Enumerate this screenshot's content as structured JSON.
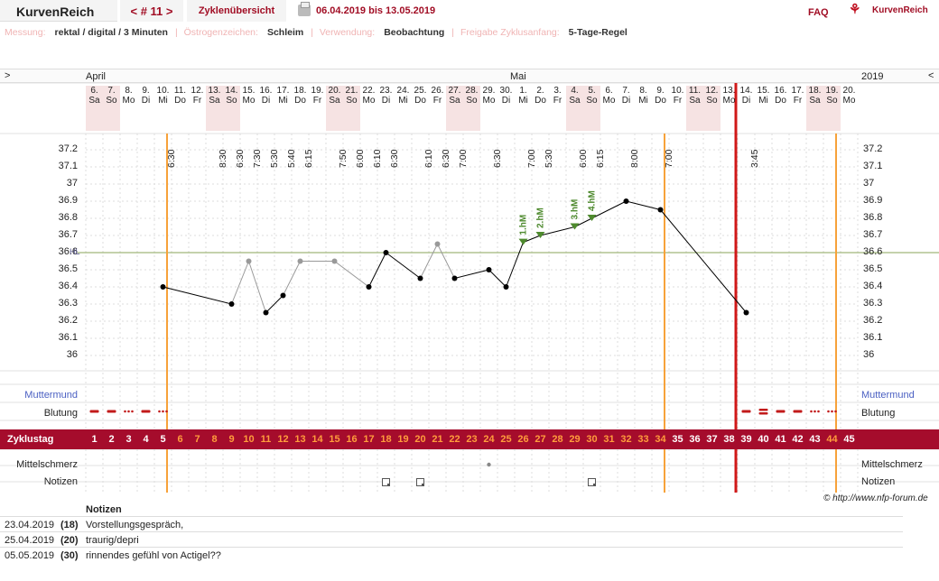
{
  "header": {
    "brand": "KurvenReich",
    "cycle_nav": "< # 11 >",
    "overview": "Zyklenübersicht",
    "date_range": "06.04.2019 bis 13.05.2019",
    "faq": "FAQ",
    "logo_text": "KurvenReich",
    "icon": "print-icon"
  },
  "params": [
    {
      "label": "Messung:",
      "value": "rektal / digital / 3 Minuten"
    },
    {
      "label": "Östrogenzeichen:",
      "value": "Schleim"
    },
    {
      "label": "Verwendung:",
      "value": "Beobachtung"
    },
    {
      "label": "Freigabe Zyklusanfang:",
      "value": "5-Tage-Regel"
    }
  ],
  "nav": {
    "left": ">",
    "right": "<"
  },
  "months": [
    {
      "name": "April",
      "day_index": 0
    },
    {
      "name": "Mai",
      "day_index": 25
    }
  ],
  "year": "2019",
  "days": [
    {
      "d": "6.",
      "w": "Sa",
      "t": "",
      "we": true
    },
    {
      "d": "7.",
      "w": "So",
      "t": "",
      "we": true
    },
    {
      "d": "8.",
      "w": "Mo",
      "t": ""
    },
    {
      "d": "9.",
      "w": "Di",
      "t": ""
    },
    {
      "d": "10.",
      "w": "Mi",
      "t": "6:30"
    },
    {
      "d": "11.",
      "w": "Do",
      "t": ""
    },
    {
      "d": "12.",
      "w": "Fr",
      "t": ""
    },
    {
      "d": "13.",
      "w": "Sa",
      "t": "8:30",
      "we": true
    },
    {
      "d": "14.",
      "w": "So",
      "t": "6:30",
      "we": true
    },
    {
      "d": "15.",
      "w": "Mo",
      "t": "7:30"
    },
    {
      "d": "16.",
      "w": "Di",
      "t": "5:30"
    },
    {
      "d": "17.",
      "w": "Mi",
      "t": "5:40"
    },
    {
      "d": "18.",
      "w": "Do",
      "t": "6:15"
    },
    {
      "d": "19.",
      "w": "Fr",
      "t": ""
    },
    {
      "d": "20.",
      "w": "Sa",
      "t": "7:50",
      "we": true
    },
    {
      "d": "21.",
      "w": "So",
      "t": "6:00",
      "we": true
    },
    {
      "d": "22.",
      "w": "Mo",
      "t": "6:10"
    },
    {
      "d": "23.",
      "w": "Di",
      "t": "6:30"
    },
    {
      "d": "24.",
      "w": "Mi",
      "t": ""
    },
    {
      "d": "25.",
      "w": "Do",
      "t": "6:10"
    },
    {
      "d": "26.",
      "w": "Fr",
      "t": "6:30"
    },
    {
      "d": "27.",
      "w": "Sa",
      "t": "7:00",
      "we": true
    },
    {
      "d": "28.",
      "w": "So",
      "t": "",
      "we": true
    },
    {
      "d": "29.",
      "w": "Mo",
      "t": "6:30"
    },
    {
      "d": "30.",
      "w": "Di",
      "t": ""
    },
    {
      "d": "1.",
      "w": "Mi",
      "t": "7:00"
    },
    {
      "d": "2.",
      "w": "Do",
      "t": "5:30"
    },
    {
      "d": "3.",
      "w": "Fr",
      "t": ""
    },
    {
      "d": "4.",
      "w": "Sa",
      "t": "6:00",
      "we": true
    },
    {
      "d": "5.",
      "w": "So",
      "t": "6:15",
      "we": true
    },
    {
      "d": "6.",
      "w": "Mo",
      "t": ""
    },
    {
      "d": "7.",
      "w": "Di",
      "t": "8:00"
    },
    {
      "d": "8.",
      "w": "Mi",
      "t": ""
    },
    {
      "d": "9.",
      "w": "Do",
      "t": "7:00"
    },
    {
      "d": "10.",
      "w": "Fr",
      "t": ""
    },
    {
      "d": "11.",
      "w": "Sa",
      "t": "",
      "we": true
    },
    {
      "d": "12.",
      "w": "So",
      "t": "",
      "we": true
    },
    {
      "d": "13.",
      "w": "Mo",
      "t": ""
    },
    {
      "d": "14.",
      "w": "Di",
      "t": "3:45"
    },
    {
      "d": "15.",
      "w": "Mi",
      "t": ""
    },
    {
      "d": "16.",
      "w": "Do",
      "t": ""
    },
    {
      "d": "17.",
      "w": "Fr",
      "t": ""
    },
    {
      "d": "18.",
      "w": "Sa",
      "t": "",
      "we": true
    },
    {
      "d": "19.",
      "w": "So",
      "t": "",
      "we": true
    },
    {
      "d": "20.",
      "w": "Mo",
      "t": ""
    }
  ],
  "chart_data": {
    "type": "line",
    "title": "",
    "xlabel": "",
    "ylabel": "",
    "ylim": [
      36.0,
      37.2
    ],
    "yticks": [
      "37.2",
      "37.1",
      "37",
      "36.9",
      "36.8",
      "36.7",
      "36.6",
      "36.5",
      "36.4",
      "36.3",
      "36.2",
      "36.1",
      "36"
    ],
    "hl_label": "HL",
    "hl_value": 36.6,
    "points": [
      {
        "day": 5,
        "v": 36.4
      },
      {
        "day": 9,
        "v": 36.3
      },
      {
        "day": 10,
        "v": 36.55,
        "excluded": true
      },
      {
        "day": 11,
        "v": 36.25
      },
      {
        "day": 12,
        "v": 36.35
      },
      {
        "day": 13,
        "v": 36.55,
        "excluded": true
      },
      {
        "day": 15,
        "v": 36.55,
        "excluded": true
      },
      {
        "day": 17,
        "v": 36.4
      },
      {
        "day": 18,
        "v": 36.6
      },
      {
        "day": 20,
        "v": 36.45
      },
      {
        "day": 21,
        "v": 36.65,
        "excluded": true
      },
      {
        "day": 22,
        "v": 36.45
      },
      {
        "day": 24,
        "v": 36.5
      },
      {
        "day": 25,
        "v": 36.4
      },
      {
        "day": 26,
        "v": 36.66,
        "marker": "1.hM"
      },
      {
        "day": 27,
        "v": 36.7,
        "marker": "2.hM"
      },
      {
        "day": 29,
        "v": 36.75,
        "marker": "3.hM"
      },
      {
        "day": 30,
        "v": 36.8,
        "marker": "4.hM"
      },
      {
        "day": 32,
        "v": 36.9
      },
      {
        "day": 34,
        "v": 36.85
      },
      {
        "day": 39,
        "v": 36.25
      }
    ],
    "cycle_days": [
      "1",
      "2",
      "3",
      "4",
      "5",
      "6",
      "7",
      "8",
      "9",
      "10",
      "11",
      "12",
      "13",
      "14",
      "15",
      "16",
      "17",
      "18",
      "19",
      "20",
      "21",
      "22",
      "23",
      "24",
      "25",
      "26",
      "27",
      "28",
      "29",
      "30",
      "31",
      "32",
      "33",
      "34",
      "35",
      "36",
      "37",
      "38",
      "39",
      "40",
      "41",
      "42",
      "43",
      "44",
      "45"
    ],
    "fertile_days_orange": [
      6,
      34
    ],
    "next_cycle_orange": [
      44,
      44
    ],
    "orange_lines": [
      5,
      34,
      44
    ],
    "red_line_day": 39,
    "bleeding": [
      {
        "day": 1,
        "type": "dash"
      },
      {
        "day": 2,
        "type": "dash"
      },
      {
        "day": 3,
        "type": "dots"
      },
      {
        "day": 4,
        "type": "dash"
      },
      {
        "day": 5,
        "type": "dots"
      },
      {
        "day": 39,
        "type": "dash"
      },
      {
        "day": 40,
        "type": "double"
      },
      {
        "day": 41,
        "type": "dash"
      },
      {
        "day": 42,
        "type": "dash"
      },
      {
        "day": 43,
        "type": "dots"
      },
      {
        "day": 44,
        "type": "dots"
      }
    ],
    "mittelschmerz_days": [
      24
    ],
    "notes_days": [
      18,
      20,
      30
    ]
  },
  "rows": {
    "muttermund": "Muttermund",
    "blutung": "Blutung",
    "zyklustag": "Zyklustag",
    "mittelschmerz": "Mittelschmerz",
    "notizen": "Notizen"
  },
  "copyright": "© http://www.nfp-forum.de",
  "notes": {
    "heading": "Notizen",
    "items": [
      {
        "date": "23.04.2019",
        "cd": "(18)",
        "text": "Vorstellungsgespräch,"
      },
      {
        "date": "25.04.2019",
        "cd": "(20)",
        "text": "traurig/depri"
      },
      {
        "date": "05.05.2019",
        "cd": "(30)",
        "text": "rinnendes gefühl von Actigel??"
      }
    ]
  }
}
